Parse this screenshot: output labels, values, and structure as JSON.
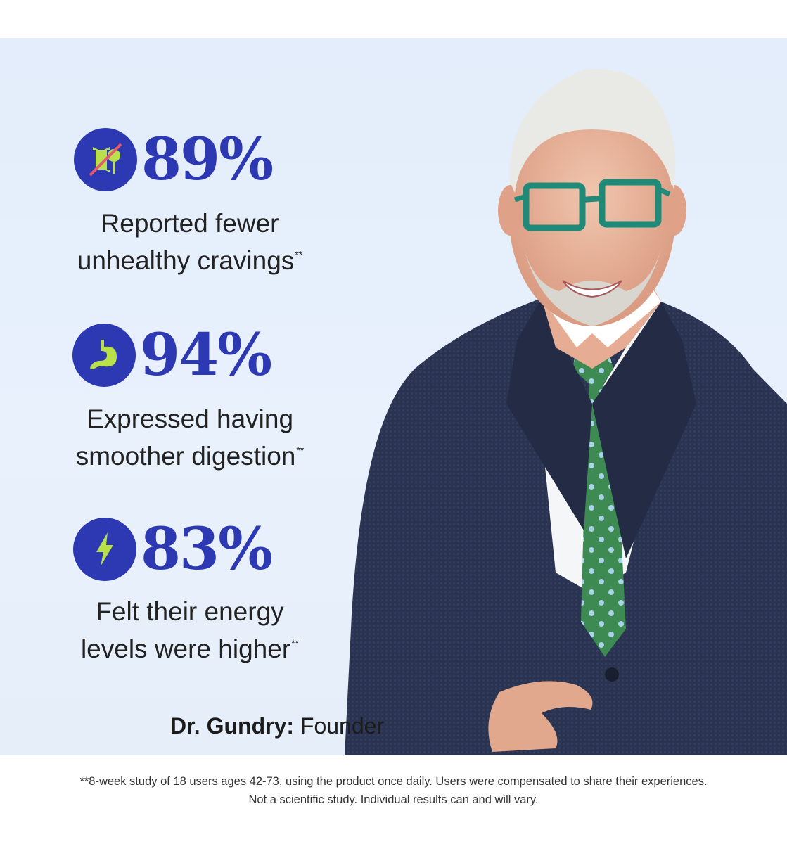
{
  "stats": [
    {
      "value": "89%",
      "line1": "Reported fewer",
      "line2": "unhealthy cravings",
      "marker": "**",
      "icon": "candy-crossed-icon"
    },
    {
      "value": "94%",
      "line1": "Expressed having",
      "line2": "smoother digestion",
      "marker": "**",
      "icon": "stomach-icon"
    },
    {
      "value": "83%",
      "line1": "Felt their energy",
      "line2": "levels were higher",
      "marker": "**",
      "icon": "lightning-bolt-icon"
    }
  ],
  "caption": {
    "name": "Dr. Gundry:",
    "role": "Founder"
  },
  "footnote": {
    "line1": "**8-week study of 18 users ages 42-73, using the product once daily. Users were compensated to share their experiences.",
    "line2": "Not a scientific study. Individual results can and will vary."
  },
  "colors": {
    "accent": "#2d38b3",
    "icon_fill": "#b7e04a",
    "background": "#e6effb",
    "suit": "#27304a",
    "tie": "#3d8a52",
    "glasses": "#1f8a78"
  }
}
